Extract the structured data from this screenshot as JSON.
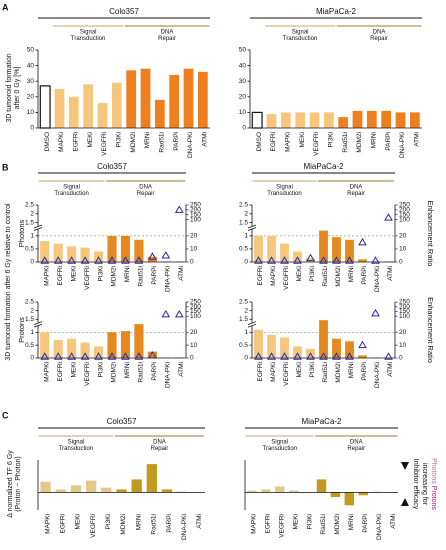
{
  "panels": [
    {
      "letter": "A",
      "ylabel": [
        "3D tumoroid formation",
        "after 0 Gy [%]"
      ]
    },
    {
      "letter": "B",
      "ylabel": [
        "3D tumoroid formation after 6 Gy relative to control"
      ]
    },
    {
      "letter": "C",
      "ylabel": [
        "Δ normalized TF 6 Gy",
        "(Proton − Photon)"
      ]
    }
  ],
  "side_note": {
    "lines": [
      "Inhibitor efficacy",
      "increasing for"
    ],
    "photons": "Photons",
    "protons": "Protons",
    "photons_color": "#b07aa0",
    "protons_color": "#b0197e"
  },
  "chart_data": [
    {
      "type": "bar",
      "title": "Colo357",
      "groups": [
        {
          "label": [
            "Signal",
            "Transduction"
          ],
          "color": "#f5c67c",
          "text_color": "#c9a56b"
        },
        {
          "label": [
            "DNA",
            "Repair"
          ],
          "color": "#ef7f1e",
          "text_color": "#9c7a2a"
        }
      ],
      "categories": [
        "DMSO",
        "MAPKi",
        "EGFRi",
        "MEKi",
        "VEGFRi",
        "PI3Ki",
        "MDM2i",
        "MRNi",
        "Rad51i",
        "PARPi",
        "DNA-PKi",
        "ATMi"
      ],
      "values": [
        27,
        25,
        20,
        28,
        16,
        29,
        37,
        38,
        18,
        34,
        38,
        36
      ],
      "colors": [
        "#ffffff",
        "#f5c67c",
        "#f5c67c",
        "#f5c67c",
        "#f5c67c",
        "#f5c67c",
        "#ef7f1e",
        "#ef7f1e",
        "#ef7f1e",
        "#ef7f1e",
        "#ef7f1e",
        "#ef7f1e"
      ],
      "ylim": [
        0,
        50
      ],
      "yticks": [
        0,
        10,
        20,
        30,
        40,
        50
      ]
    },
    {
      "type": "bar",
      "title": "MiaPaCa-2",
      "groups": [
        {
          "label": [
            "Signal",
            "Transduction"
          ],
          "color": "#f5c67c",
          "text_color": "#c9a56b"
        },
        {
          "label": [
            "DNA",
            "Repair"
          ],
          "color": "#ef7f1e",
          "text_color": "#9c7a2a"
        }
      ],
      "categories": [
        "DMSO",
        "EGFRi",
        "MAPKi",
        "MEKi",
        "VEGFRi",
        "PI3Ki",
        "Rad51i",
        "MDM2i",
        "MRNi",
        "PARPi",
        "DNA-PKi",
        "ATMi"
      ],
      "values": [
        10,
        9,
        10,
        10,
        10,
        10,
        7,
        11,
        11,
        11,
        10,
        10
      ],
      "colors": [
        "#ffffff",
        "#f5c67c",
        "#f5c67c",
        "#f5c67c",
        "#f5c67c",
        "#f5c67c",
        "#ef7f1e",
        "#ef7f1e",
        "#ef7f1e",
        "#ef7f1e",
        "#ef7f1e",
        "#ef7f1e"
      ],
      "ylim": [
        0,
        50
      ],
      "yticks": [
        0,
        10,
        20,
        30,
        40,
        50
      ]
    },
    {
      "type": "bar",
      "title": "Colo357",
      "side_label": "Photons",
      "side_color": "#e0529c",
      "groups": [
        {
          "label": [
            "Signal",
            "Transduction"
          ],
          "color": "#f5c67c",
          "text_color": "#c9a56b"
        },
        {
          "label": [
            "DNA",
            "Repair"
          ],
          "color": "#e5891f",
          "text_color": "#9c7a2a"
        }
      ],
      "categories": [
        "MAPKi",
        "EGFRi",
        "MEKi",
        "VEGFRi",
        "PI3Ki",
        "MDM2i",
        "MRNi",
        "Rad51i",
        "PARPi",
        "DNA-PKi",
        "ATMi"
      ],
      "values": [
        0.8,
        0.7,
        0.6,
        0.55,
        0.4,
        1.0,
        1.0,
        0.85,
        0.2,
        0.02,
        0.02
      ],
      "colors": [
        "#f5c67c",
        "#f5c67c",
        "#f5c67c",
        "#f5c67c",
        "#f5c67c",
        "#e5891f",
        "#e5891f",
        "#e5891f",
        "#e5891f",
        "#e5891f",
        "#e5891f"
      ],
      "ylim": [
        0,
        2.5
      ],
      "yticks": [
        0,
        0.5,
        1,
        1.5,
        2,
        2.5
      ],
      "ybreak": {
        "lower": [
          0,
          1.2
        ],
        "upper": [
          1.4,
          2.5
        ]
      },
      "refline": 1,
      "y2lim": [
        0,
        250
      ],
      "y2ticks": [
        0,
        10,
        20,
        100,
        150,
        200,
        250
      ],
      "y2break": {
        "lower": [
          0,
          24
        ],
        "upper": [
          50,
          250
        ]
      },
      "y2_values": [
        1,
        1,
        1,
        1,
        1,
        1,
        1,
        1,
        4,
        5,
        200
      ],
      "y2_color": "#2a2aa0"
    },
    {
      "type": "bar",
      "title": "MiaPaCa-2",
      "y2label": "Enhancement Ratio",
      "groups": [
        {
          "label": [
            "Signal",
            "Transduction"
          ],
          "color": "#f5c67c",
          "text_color": "#c9a56b"
        },
        {
          "label": [
            "DNA",
            "Repair"
          ],
          "color": "#e5891f",
          "text_color": "#9c7a2a"
        }
      ],
      "categories": [
        "EGFRi",
        "MAPKi",
        "VEGFRi",
        "MEKi",
        "PI3Ki",
        "Rad51i",
        "MDM2i",
        "MRNi",
        "PARPi",
        "DNA-PKi",
        "ATMi"
      ],
      "values": [
        1.0,
        1.0,
        0.7,
        0.4,
        0.15,
        1.2,
        0.95,
        0.85,
        0.1,
        0.02,
        0.02
      ],
      "colors": [
        "#f5c67c",
        "#f5c67c",
        "#f5c67c",
        "#f5c67c",
        "#f5c67c",
        "#e5891f",
        "#e5891f",
        "#e5891f",
        "#e5891f",
        "#e5891f",
        "#e5891f"
      ],
      "ylim": [
        0,
        2.5
      ],
      "yticks": [
        0,
        0.5,
        1,
        1.5,
        2,
        2.5
      ],
      "ybreak": {
        "lower": [
          0,
          1.2
        ],
        "upper": [
          1.4,
          2.5
        ]
      },
      "refline": 1,
      "y2lim": [
        0,
        250
      ],
      "y2ticks": [
        0,
        10,
        20,
        100,
        150,
        200,
        250
      ],
      "y2break": {
        "lower": [
          0,
          24
        ],
        "upper": [
          50,
          250
        ]
      },
      "y2_values": [
        1,
        1,
        1,
        1,
        3,
        1,
        1,
        1,
        15,
        1,
        120
      ],
      "y2_color": "#2a2aa0"
    },
    {
      "type": "bar",
      "side_label": "Protons",
      "side_color": "#8a2a7a",
      "categories": [
        "MAPKi",
        "EGFRi",
        "MEKi",
        "VEGFRi",
        "PI3Ki",
        "MDM2i",
        "MRNi",
        "Rad51i",
        "PARPi",
        "DNA-PKi",
        "ATMi"
      ],
      "values": [
        1.0,
        0.7,
        0.75,
        0.6,
        0.45,
        1.0,
        1.05,
        1.3,
        0.25,
        0.02,
        0.02
      ],
      "colors": [
        "#f5c67c",
        "#f5c67c",
        "#f5c67c",
        "#f5c67c",
        "#f5c67c",
        "#e5891f",
        "#e5891f",
        "#e5891f",
        "#e5891f",
        "#e5891f",
        "#e5891f"
      ],
      "ylim": [
        0,
        2.5
      ],
      "yticks": [
        0,
        0.5,
        1,
        1.5,
        2,
        2.5
      ],
      "ybreak": {
        "lower": [
          0,
          1.2
        ],
        "upper": [
          1.4,
          2.5
        ]
      },
      "refline": 1,
      "y2lim": [
        0,
        250
      ],
      "y2ticks": [
        0,
        10,
        20,
        100,
        150,
        200,
        250
      ],
      "y2break": {
        "lower": [
          0,
          24
        ],
        "upper": [
          50,
          250
        ]
      },
      "y2_values": [
        1,
        1,
        1,
        1,
        1,
        1,
        1,
        1,
        2,
        120,
        120
      ],
      "y2_color": "#2a2aa0"
    },
    {
      "type": "bar",
      "y2label": "Enhancement Ratio",
      "categories": [
        "EGFRi",
        "MAPKi",
        "VEGFRi",
        "MEKi",
        "PI3Ki",
        "Rad51i",
        "MDM2i",
        "MRNi",
        "PARPi",
        "DNA-PKi",
        "ATMi"
      ],
      "values": [
        1.1,
        0.9,
        0.8,
        0.45,
        0.35,
        1.45,
        0.75,
        0.65,
        0.1,
        0.02,
        0.02
      ],
      "colors": [
        "#f5c67c",
        "#f5c67c",
        "#f5c67c",
        "#f5c67c",
        "#f5c67c",
        "#e5891f",
        "#e5891f",
        "#e5891f",
        "#e5891f",
        "#e5891f",
        "#e5891f"
      ],
      "ylim": [
        0,
        2.5
      ],
      "yticks": [
        0,
        0.5,
        1,
        1.5,
        2,
        2.5
      ],
      "ybreak": {
        "lower": [
          0,
          1.2
        ],
        "upper": [
          1.4,
          2.5
        ]
      },
      "refline": 1,
      "y2lim": [
        0,
        250
      ],
      "y2ticks": [
        0,
        10,
        20,
        100,
        150,
        200,
        250
      ],
      "y2break": {
        "lower": [
          0,
          24
        ],
        "upper": [
          50,
          250
        ]
      },
      "y2_values": [
        1,
        1,
        1,
        1,
        1,
        1,
        1,
        1,
        10,
        130,
        1
      ],
      "y2_color": "#2a2aa0"
    },
    {
      "type": "bar",
      "title": "Colo357",
      "groups": [
        {
          "label": [
            "Signal",
            "Transduction"
          ],
          "color": "#e2c98a",
          "text_color": "#c9a56b"
        },
        {
          "label": [
            "DNA",
            "Repair"
          ],
          "color": "#c29a1e",
          "text_color": "#9c7a2a"
        }
      ],
      "categories": [
        "MAPKi",
        "EGFRi",
        "MEKi",
        "VEGFRi",
        "PI3Ki",
        "MDM2i",
        "MRNi",
        "Rad51i",
        "PARPi",
        "DNA-PKi",
        "ATMi"
      ],
      "values": [
        0.18,
        0.05,
        0.12,
        0.2,
        0.08,
        0.05,
        0.22,
        0.48,
        0.05,
        0.01,
        0
      ],
      "colors": [
        "#e2c98a",
        "#e2c98a",
        "#e2c98a",
        "#e2c98a",
        "#e2c98a",
        "#c29a1e",
        "#c29a1e",
        "#c29a1e",
        "#c29a1e",
        "#c29a1e",
        "#c29a1e"
      ],
      "ylim": [
        -0.3,
        0.55
      ]
    },
    {
      "type": "bar",
      "title": "MiaPaCa-2",
      "groups": [
        {
          "label": [
            "Signal",
            "Transduction"
          ],
          "color": "#e2c98a",
          "text_color": "#c9a56b"
        },
        {
          "label": [
            "DNA",
            "Repair"
          ],
          "color": "#c29a1e",
          "text_color": "#9c7a2a"
        }
      ],
      "categories": [
        "MAPKi",
        "EGFRi",
        "VEGFRi",
        "MEKi",
        "PI3Ki",
        "Rad51i",
        "MDM2i",
        "MRNi",
        "PARPi",
        "DNA-PKi",
        "ATMi"
      ],
      "values": [
        0.03,
        0.05,
        0.1,
        0.03,
        0,
        0.22,
        -0.08,
        -0.22,
        -0.05,
        0.01,
        0
      ],
      "colors": [
        "#e2c98a",
        "#e2c98a",
        "#e2c98a",
        "#e2c98a",
        "#e2c98a",
        "#c29a1e",
        "#c29a1e",
        "#c29a1e",
        "#c29a1e",
        "#c29a1e",
        "#c29a1e"
      ],
      "ylim": [
        -0.3,
        0.55
      ]
    }
  ]
}
